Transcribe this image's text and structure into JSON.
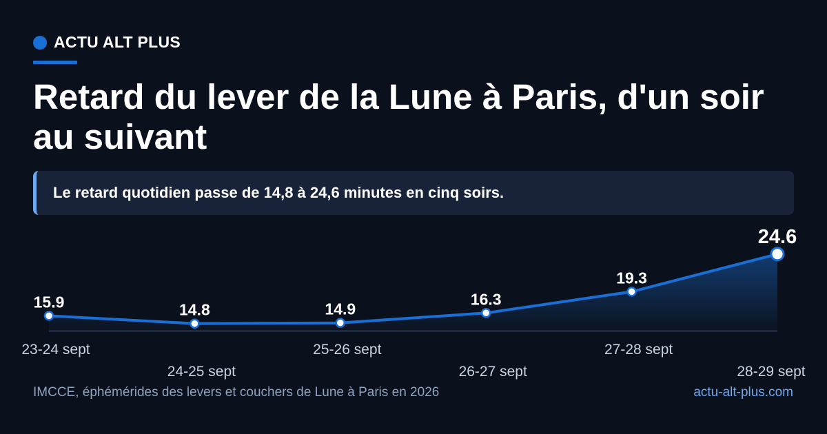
{
  "brand": {
    "name": "ACTU ALT PLUS",
    "accent_color": "#1a6fd6"
  },
  "title": "Retard du lever de la Lune à Paris, d'un soir au suivant",
  "callout": "Le retard quotidien passe de 14,8 à 24,6 minutes en cinq soirs.",
  "footer": {
    "source": "IMCCE, éphémérides des levers et couchers de Lune à Paris en 2026",
    "site": "actu-alt-plus.com"
  },
  "chart_data": {
    "type": "area",
    "categories": [
      "23-24 sept",
      "24-25 sept",
      "25-26 sept",
      "26-27 sept",
      "27-28 sept",
      "28-29 sept"
    ],
    "series": [
      {
        "values": [
          15.9,
          14.8,
          14.9,
          16.3,
          19.3,
          24.6
        ],
        "color": "#1a6fd6"
      }
    ],
    "data_labels": [
      "15.9",
      "14.8",
      "14.9",
      "16.3",
      "19.3",
      "24.6"
    ],
    "last_point_highlighted": true,
    "x_labels_staggered": true,
    "grid": false,
    "legend": "none"
  }
}
